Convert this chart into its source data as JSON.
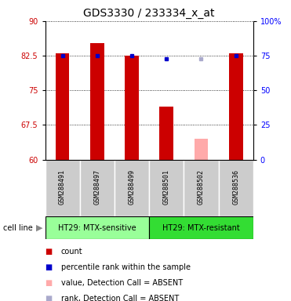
{
  "title": "GDS3330 / 233334_x_at",
  "samples": [
    "GSM288491",
    "GSM288497",
    "GSM288499",
    "GSM288501",
    "GSM288502",
    "GSM288536"
  ],
  "bar_values": [
    83.0,
    85.2,
    82.5,
    71.5,
    null,
    83.0
  ],
  "bar_color": "#cc0000",
  "absent_bar_values": [
    null,
    null,
    null,
    null,
    64.5,
    null
  ],
  "absent_bar_color": "#ffaaaa",
  "percentile_values": [
    75.0,
    75.0,
    75.0,
    72.5,
    null,
    75.0
  ],
  "percentile_color": "#0000cc",
  "absent_rank_values": [
    null,
    null,
    null,
    null,
    72.5,
    null
  ],
  "absent_rank_color": "#aaaacc",
  "ylim_left": [
    60,
    90
  ],
  "ylim_right": [
    0,
    100
  ],
  "yticks_left": [
    60,
    67.5,
    75,
    82.5,
    90
  ],
  "ytick_labels_left": [
    "60",
    "67.5",
    "75",
    "82.5",
    "90"
  ],
  "yticks_right": [
    0,
    25,
    50,
    75,
    100
  ],
  "ytick_labels_right": [
    "0",
    "25",
    "50",
    "75",
    "100%"
  ],
  "group1_label": "HT29: MTX-sensitive",
  "group2_label": "HT29: MTX-resistant",
  "group1_indices": [
    0,
    1,
    2
  ],
  "group2_indices": [
    3,
    4,
    5
  ],
  "cell_line_label": "cell line",
  "legend_items": [
    {
      "color": "#cc0000",
      "label": "count"
    },
    {
      "color": "#0000cc",
      "label": "percentile rank within the sample"
    },
    {
      "color": "#ffaaaa",
      "label": "value, Detection Call = ABSENT"
    },
    {
      "color": "#aaaacc",
      "label": "rank, Detection Call = ABSENT"
    }
  ],
  "bar_width": 0.4,
  "sample_area_color": "#cccccc",
  "group1_color": "#99ff99",
  "group2_color": "#33dd33",
  "title_fontsize": 10,
  "tick_fontsize": 7,
  "sample_label_fontsize": 6,
  "group_label_fontsize": 7,
  "legend_fontsize": 7
}
